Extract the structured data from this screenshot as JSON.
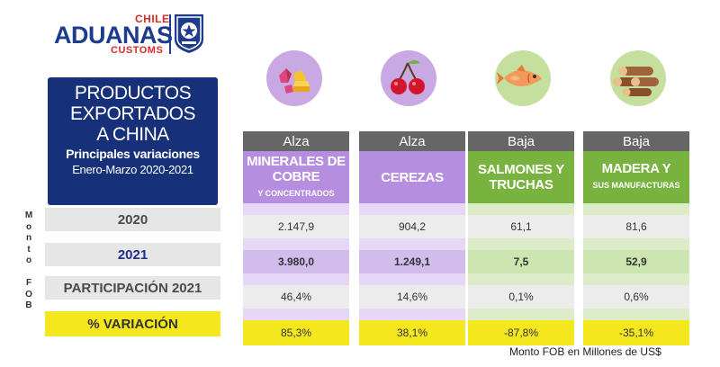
{
  "logo": {
    "chile": "CHILE",
    "aduanas": "ADUANAS",
    "customs": "CUSTOMS",
    "brand_blue": "#1e3c8c",
    "brand_red": "#d62b2b"
  },
  "title": {
    "line1": "PRODUCTOS",
    "line2": "EXPORTADOS",
    "line3": "A CHINA",
    "subtitle": "Principales variaciones",
    "period": "Enero-Marzo 2020-2021"
  },
  "side_label": [
    "M",
    "o",
    "n",
    "t",
    "o",
    "",
    "F",
    "O",
    "B"
  ],
  "rows": {
    "r2020": "2020",
    "r2021": "2021",
    "participation": "PARTICIPACIÓN 2021",
    "variation": "% VARIACIÓN"
  },
  "chart_data": {
    "type": "table",
    "title": "PRODUCTOS EXPORTADOS A CHINA - Principales variaciones - Enero-Marzo 2020-2021",
    "columns": [
      {
        "trend": "Alza",
        "name": "MINERALES DE COBRE",
        "sub": "Y CONCENTRADOS",
        "icon": "minerals-icon",
        "v2020": "2.147,9",
        "v2021": "3.980,0",
        "participation": "46,4%",
        "variation": "85,3%"
      },
      {
        "trend": "Alza",
        "name": "CEREZAS",
        "sub": "",
        "icon": "cherries-icon",
        "v2020": "904,2",
        "v2021": "1.249,1",
        "participation": "14,6%",
        "variation": "38,1%"
      },
      {
        "trend": "Baja",
        "name": "SALMONES Y TRUCHAS",
        "sub": "",
        "icon": "fish-icon",
        "v2020": "61,1",
        "v2021": "7,5",
        "participation": "0,1%",
        "variation": "-87,8%"
      },
      {
        "trend": "Baja",
        "name": "MADERA Y",
        "sub": "SUS MANUFACTURAS",
        "icon": "logs-icon",
        "v2020": "81,6",
        "v2021": "52,9",
        "participation": "0,6%",
        "variation": "-35,1%"
      }
    ],
    "unit_note": "Monto FOB en Millones de US$"
  }
}
